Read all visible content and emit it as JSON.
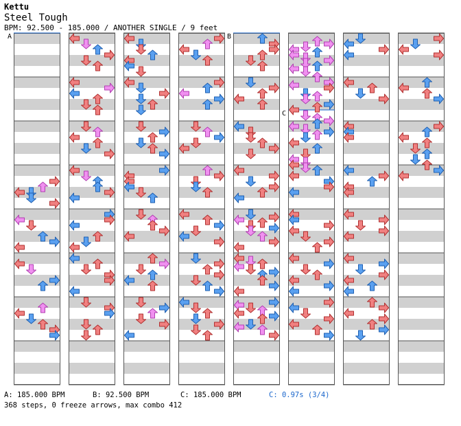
{
  "song": {
    "artist": "Kettu",
    "title": "Steel Tough",
    "info": "BPM: 92.500 - 185.000 / ANOTHER SINGLE / 9 feet"
  },
  "markers": [
    {
      "label": "A",
      "column": 0,
      "beat": 0
    },
    {
      "label": "B",
      "column": 4,
      "beat": 0
    },
    {
      "label": "C",
      "column": 5,
      "beat": 7
    }
  ],
  "legend": {
    "a": "A: 185.000 BPM",
    "b": "B: 92.500 BPM",
    "c": "C: 185.000 BPM",
    "stop": "C: 0.97s (3/4)"
  },
  "summary": "368 steps, 0 freeze arrows, max combo 412",
  "colors": {
    "quarter": "#f08080",
    "eighth": "#5aa0f0",
    "sixteenth": "#f090f0"
  },
  "columns": [
    [
      [
        13,
        3,
        "r"
      ],
      [
        13.5,
        2,
        "p"
      ],
      [
        14,
        0,
        "r"
      ],
      [
        14,
        1,
        "b"
      ],
      [
        14.5,
        1,
        "b"
      ],
      [
        15,
        3,
        "r"
      ],
      [
        16.5,
        0,
        "p"
      ],
      [
        17,
        1,
        "r"
      ],
      [
        18,
        2,
        "b"
      ],
      [
        18.5,
        3,
        "b"
      ],
      [
        19,
        0,
        "r"
      ],
      [
        20.5,
        0,
        "r"
      ],
      [
        21,
        1,
        "p"
      ],
      [
        22,
        3,
        "b"
      ],
      [
        22.5,
        2,
        "b"
      ],
      [
        24.5,
        2,
        "p"
      ],
      [
        25,
        0,
        "r"
      ],
      [
        25.5,
        1,
        "b"
      ],
      [
        26,
        2,
        "r"
      ],
      [
        26.5,
        3,
        "r"
      ],
      [
        27,
        3,
        "b"
      ]
    ],
    [
      [
        0,
        0,
        "r"
      ],
      [
        0.5,
        1,
        "p"
      ],
      [
        1,
        2,
        "b"
      ],
      [
        1.5,
        3,
        "r"
      ],
      [
        2,
        1,
        "r"
      ],
      [
        2.5,
        2,
        "r"
      ],
      [
        4,
        0,
        "r"
      ],
      [
        4.5,
        3,
        "p"
      ],
      [
        5,
        0,
        "b"
      ],
      [
        5.5,
        2,
        "r"
      ],
      [
        6,
        1,
        "r"
      ],
      [
        6.5,
        2,
        "r"
      ],
      [
        8,
        1,
        "r"
      ],
      [
        8.5,
        2,
        "p"
      ],
      [
        9,
        0,
        "r"
      ],
      [
        9.5,
        2,
        "r"
      ],
      [
        10,
        1,
        "b"
      ],
      [
        10.5,
        3,
        "r"
      ],
      [
        12,
        0,
        "r"
      ],
      [
        12.5,
        1,
        "p"
      ],
      [
        13,
        2,
        "b"
      ],
      [
        13.5,
        2,
        "b"
      ],
      [
        14,
        3,
        "r"
      ],
      [
        14.5,
        0,
        "b"
      ],
      [
        16,
        3,
        "b"
      ],
      [
        16.5,
        3,
        "r"
      ],
      [
        17,
        0,
        "b"
      ],
      [
        18,
        2,
        "r"
      ],
      [
        18.5,
        1,
        "b"
      ],
      [
        19,
        0,
        "r"
      ],
      [
        20,
        0,
        "b"
      ],
      [
        20.5,
        2,
        "r"
      ],
      [
        21,
        1,
        "r"
      ],
      [
        21.5,
        3,
        "r"
      ],
      [
        22,
        3,
        "r"
      ],
      [
        23,
        0,
        "b"
      ],
      [
        24,
        1,
        "r"
      ],
      [
        24.5,
        3,
        "r"
      ],
      [
        25,
        3,
        "b"
      ],
      [
        26,
        1,
        "r"
      ],
      [
        26.5,
        2,
        "r"
      ],
      [
        27,
        1,
        "r"
      ]
    ],
    [
      [
        0,
        0,
        "r"
      ],
      [
        0.5,
        1,
        "b"
      ],
      [
        1,
        1,
        "r"
      ],
      [
        1.5,
        2,
        "b"
      ],
      [
        2,
        0,
        "r"
      ],
      [
        2.5,
        0,
        "b"
      ],
      [
        3,
        1,
        "r"
      ],
      [
        4,
        0,
        "r"
      ],
      [
        4.5,
        1,
        "b"
      ],
      [
        5,
        3,
        "r"
      ],
      [
        5.5,
        1,
        "b"
      ],
      [
        6,
        2,
        "r"
      ],
      [
        6.5,
        1,
        "b"
      ],
      [
        8,
        1,
        "r"
      ],
      [
        8.5,
        3,
        "b"
      ],
      [
        9,
        2,
        "r"
      ],
      [
        9.5,
        1,
        "b"
      ],
      [
        10,
        2,
        "r"
      ],
      [
        10.5,
        3,
        "b"
      ],
      [
        12,
        3,
        "b"
      ],
      [
        12.5,
        0,
        "r"
      ],
      [
        13,
        0,
        "r"
      ],
      [
        13.5,
        0,
        "b"
      ],
      [
        14,
        1,
        "r"
      ],
      [
        14.5,
        2,
        "b"
      ],
      [
        16,
        1,
        "r"
      ],
      [
        16.5,
        2,
        "p"
      ],
      [
        17,
        2,
        "r"
      ],
      [
        17.5,
        3,
        "r"
      ],
      [
        18,
        0,
        "r"
      ],
      [
        20,
        2,
        "r"
      ],
      [
        20.5,
        3,
        "p"
      ],
      [
        21,
        1,
        "r"
      ],
      [
        21.5,
        2,
        "b"
      ],
      [
        22,
        0,
        "b"
      ],
      [
        22.5,
        2,
        "r"
      ],
      [
        24,
        1,
        "r"
      ],
      [
        24.5,
        3,
        "b"
      ],
      [
        25,
        2,
        "p"
      ],
      [
        25.5,
        1,
        "r"
      ],
      [
        26,
        3,
        "r"
      ],
      [
        27,
        0,
        "b"
      ]
    ],
    [
      [
        0,
        3,
        "r"
      ],
      [
        0.5,
        2,
        "p"
      ],
      [
        1,
        0,
        "r"
      ],
      [
        1.5,
        1,
        "b"
      ],
      [
        2,
        2,
        "r"
      ],
      [
        4,
        3,
        "r"
      ],
      [
        4.5,
        2,
        "b"
      ],
      [
        5,
        0,
        "p"
      ],
      [
        5.5,
        3,
        "b"
      ],
      [
        6,
        2,
        "b"
      ],
      [
        8,
        1,
        "r"
      ],
      [
        8.5,
        2,
        "p"
      ],
      [
        9,
        3,
        "b"
      ],
      [
        9.5,
        1,
        "r"
      ],
      [
        10,
        0,
        "r"
      ],
      [
        12,
        2,
        "p"
      ],
      [
        12.5,
        3,
        "r"
      ],
      [
        13,
        1,
        "r"
      ],
      [
        13.5,
        1,
        "b"
      ],
      [
        14,
        2,
        "r"
      ],
      [
        16,
        0,
        "r"
      ],
      [
        16.5,
        2,
        "r"
      ],
      [
        17,
        3,
        "b"
      ],
      [
        17.5,
        1,
        "r"
      ],
      [
        18,
        0,
        "b"
      ],
      [
        18.5,
        3,
        "r"
      ],
      [
        20,
        1,
        "b"
      ],
      [
        20.5,
        3,
        "r"
      ],
      [
        21,
        2,
        "r"
      ],
      [
        21.5,
        3,
        "r"
      ],
      [
        22,
        1,
        "r"
      ],
      [
        22.5,
        2,
        "b"
      ],
      [
        23,
        3,
        "b"
      ],
      [
        24,
        0,
        "b"
      ],
      [
        24.5,
        1,
        "r"
      ],
      [
        25,
        2,
        "r"
      ],
      [
        25.5,
        1,
        "b"
      ],
      [
        26,
        3,
        "r"
      ],
      [
        26.5,
        1,
        "r"
      ],
      [
        27,
        2,
        "r"
      ]
    ],
    [
      [
        0,
        2,
        "b"
      ],
      [
        0.5,
        3,
        "r"
      ],
      [
        1,
        3,
        "r"
      ],
      [
        1.5,
        2,
        "r"
      ],
      [
        2,
        1,
        "r"
      ],
      [
        2.5,
        2,
        "r"
      ],
      [
        4,
        1,
        "b"
      ],
      [
        4.5,
        3,
        "r"
      ],
      [
        5,
        2,
        "r"
      ],
      [
        5.5,
        0,
        "r"
      ],
      [
        6,
        2,
        "r"
      ],
      [
        8,
        0,
        "b"
      ],
      [
        8.5,
        1,
        "r"
      ],
      [
        9,
        1,
        "r"
      ],
      [
        9.5,
        2,
        "r"
      ],
      [
        10,
        3,
        "r"
      ],
      [
        10.5,
        1,
        "r"
      ],
      [
        12,
        0,
        "r"
      ],
      [
        12.5,
        3,
        "r"
      ],
      [
        13,
        1,
        "b"
      ],
      [
        13.5,
        3,
        "r"
      ],
      [
        14,
        2,
        "r"
      ],
      [
        14.5,
        0,
        "b"
      ],
      [
        16,
        1,
        "b"
      ],
      [
        16.25,
        3,
        "r"
      ],
      [
        16.5,
        0,
        "p"
      ],
      [
        16.75,
        2,
        "r"
      ],
      [
        17,
        1,
        "r"
      ],
      [
        17.25,
        3,
        "b"
      ],
      [
        17.5,
        1,
        "p"
      ],
      [
        18,
        2,
        "p"
      ],
      [
        18.5,
        3,
        "r"
      ],
      [
        19,
        0,
        "r"
      ],
      [
        20,
        0,
        "r"
      ],
      [
        20.25,
        1,
        "p"
      ],
      [
        20.5,
        2,
        "r"
      ],
      [
        20.75,
        0,
        "p"
      ],
      [
        21,
        1,
        "r"
      ],
      [
        21.25,
        3,
        "b"
      ],
      [
        21.5,
        2,
        "b"
      ],
      [
        22,
        2,
        "r"
      ],
      [
        22.5,
        3,
        "b"
      ],
      [
        23,
        0,
        "r"
      ],
      [
        24,
        3,
        "b"
      ],
      [
        24.25,
        0,
        "p"
      ],
      [
        24.5,
        1,
        "r"
      ],
      [
        24.75,
        2,
        "p"
      ],
      [
        25,
        0,
        "r"
      ],
      [
        25.25,
        3,
        "b"
      ],
      [
        25.5,
        2,
        "r"
      ],
      [
        26,
        1,
        "b"
      ],
      [
        26.25,
        0,
        "p"
      ],
      [
        26.5,
        2,
        "p"
      ],
      [
        27,
        3,
        "r"
      ]
    ],
    [
      [
        0.25,
        2,
        "p"
      ],
      [
        0.5,
        3,
        "p"
      ],
      [
        0.75,
        1,
        "p"
      ],
      [
        1,
        0,
        "p"
      ],
      [
        1.25,
        2,
        "b"
      ],
      [
        1.5,
        0,
        "p"
      ],
      [
        1.75,
        1,
        "p"
      ],
      [
        2,
        3,
        "p"
      ],
      [
        2.25,
        1,
        "p"
      ],
      [
        2.5,
        2,
        "b"
      ],
      [
        2.75,
        0,
        "p"
      ],
      [
        3,
        1,
        "p"
      ],
      [
        3.5,
        2,
        "p"
      ],
      [
        4,
        3,
        "p"
      ],
      [
        4.25,
        0,
        "p"
      ],
      [
        4.5,
        3,
        "r"
      ],
      [
        5,
        1,
        "b"
      ],
      [
        5.25,
        2,
        "p"
      ],
      [
        5.5,
        1,
        "p"
      ],
      [
        6,
        3,
        "b"
      ],
      [
        6.25,
        2,
        "r"
      ],
      [
        6.5,
        0,
        "r"
      ],
      [
        7,
        1,
        "p"
      ],
      [
        7.25,
        2,
        "p"
      ],
      [
        7.5,
        3,
        "p"
      ],
      [
        7.75,
        2,
        "b"
      ],
      [
        8,
        0,
        "p"
      ],
      [
        8.25,
        1,
        "p"
      ],
      [
        8.5,
        3,
        "b"
      ],
      [
        8.75,
        2,
        "p"
      ],
      [
        9,
        1,
        "b"
      ],
      [
        9.5,
        0,
        "r"
      ],
      [
        10,
        2,
        "b"
      ],
      [
        10.5,
        1,
        "r"
      ],
      [
        11,
        0,
        "p"
      ],
      [
        11.25,
        1,
        "p"
      ],
      [
        11.5,
        0,
        "r"
      ],
      [
        11.75,
        1,
        "p"
      ],
      [
        12,
        2,
        "b"
      ],
      [
        12.5,
        0,
        "r"
      ],
      [
        13,
        3,
        "b"
      ],
      [
        13.5,
        3,
        "r"
      ],
      [
        14,
        0,
        "b"
      ],
      [
        16,
        0,
        "r"
      ],
      [
        16.5,
        0,
        "b"
      ],
      [
        17,
        3,
        "r"
      ],
      [
        17.5,
        0,
        "r"
      ],
      [
        18,
        1,
        "r"
      ],
      [
        18.5,
        3,
        "r"
      ],
      [
        19,
        2,
        "r"
      ],
      [
        20,
        0,
        "r"
      ],
      [
        20.5,
        3,
        "b"
      ],
      [
        21,
        1,
        "r"
      ],
      [
        21.5,
        2,
        "r"
      ],
      [
        22,
        0,
        "r"
      ],
      [
        22.5,
        3,
        "b"
      ],
      [
        23,
        0,
        "b"
      ],
      [
        24,
        3,
        "r"
      ],
      [
        24.5,
        0,
        "b"
      ],
      [
        25,
        1,
        "r"
      ],
      [
        25.5,
        3,
        "r"
      ],
      [
        26,
        0,
        "r"
      ],
      [
        26.5,
        2,
        "r"
      ],
      [
        27,
        3,
        "b"
      ]
    ],
    [
      [
        0,
        1,
        "b"
      ],
      [
        0.5,
        0,
        "b"
      ],
      [
        1,
        3,
        "r"
      ],
      [
        1.5,
        0,
        "b"
      ],
      [
        4,
        0,
        "r"
      ],
      [
        4.5,
        2,
        "r"
      ],
      [
        5,
        1,
        "b"
      ],
      [
        5.5,
        3,
        "r"
      ],
      [
        8,
        0,
        "r"
      ],
      [
        8.5,
        0,
        "b"
      ],
      [
        9,
        0,
        "r"
      ],
      [
        12,
        0,
        "b"
      ],
      [
        12.5,
        3,
        "r"
      ],
      [
        13,
        2,
        "b"
      ],
      [
        13.5,
        0,
        "r"
      ],
      [
        14,
        0,
        "r"
      ],
      [
        16,
        0,
        "r"
      ],
      [
        16.5,
        3,
        "r"
      ],
      [
        17,
        1,
        "r"
      ],
      [
        17.5,
        3,
        "r"
      ],
      [
        18,
        0,
        "r"
      ],
      [
        20,
        0,
        "r"
      ],
      [
        20.5,
        3,
        "b"
      ],
      [
        21,
        1,
        "b"
      ],
      [
        21.5,
        3,
        "r"
      ],
      [
        22,
        0,
        "r"
      ],
      [
        22.5,
        2,
        "b"
      ],
      [
        23,
        0,
        "b"
      ],
      [
        24,
        2,
        "r"
      ],
      [
        24.5,
        3,
        "r"
      ],
      [
        25,
        0,
        "r"
      ],
      [
        25.5,
        3,
        "r"
      ],
      [
        26,
        2,
        "r"
      ],
      [
        26.5,
        3,
        "b"
      ],
      [
        27,
        1,
        "b"
      ]
    ],
    [
      [
        0,
        3,
        "r"
      ],
      [
        0.5,
        1,
        "b"
      ],
      [
        1,
        0,
        "r"
      ],
      [
        1.5,
        3,
        "r"
      ],
      [
        4,
        2,
        "b"
      ],
      [
        4.5,
        0,
        "r"
      ],
      [
        5,
        2,
        "r"
      ],
      [
        5.5,
        3,
        "b"
      ],
      [
        8,
        3,
        "r"
      ],
      [
        8.5,
        2,
        "b"
      ],
      [
        9,
        0,
        "r"
      ],
      [
        9.5,
        2,
        "r"
      ],
      [
        10,
        1,
        "r"
      ],
      [
        10.5,
        2,
        "b"
      ],
      [
        11,
        1,
        "b"
      ],
      [
        11.5,
        2,
        "r"
      ],
      [
        12,
        3,
        "b"
      ],
      [
        12.5,
        0,
        "r"
      ]
    ]
  ]
}
